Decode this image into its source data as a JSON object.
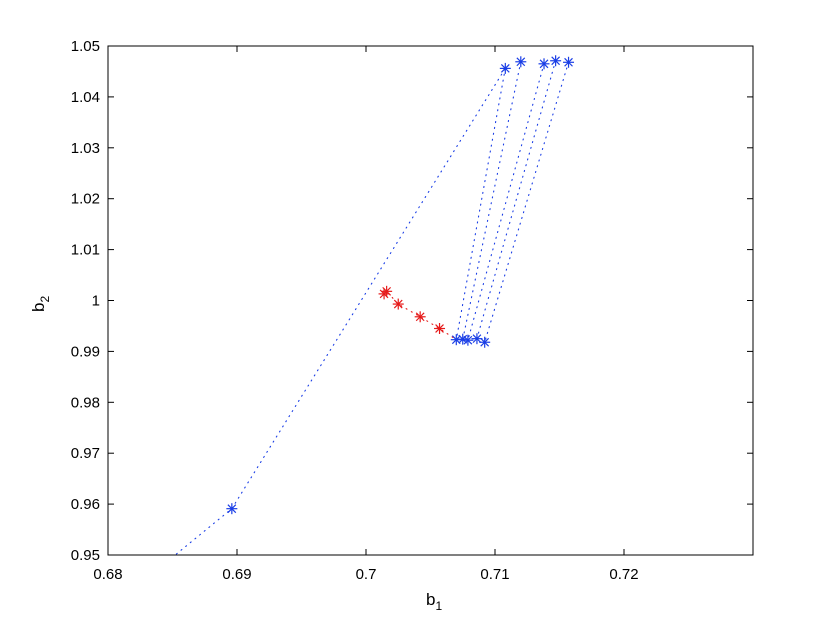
{
  "chart_data": {
    "type": "scatter",
    "xlabel": "b",
    "xlabel_sub": "1",
    "ylabel": "b",
    "ylabel_sub": "2",
    "xlim": [
      0.68,
      0.73
    ],
    "ylim": [
      0.95,
      1.05
    ],
    "xticks": [
      0.68,
      0.69,
      0.7,
      0.71,
      0.72
    ],
    "xtick_labels": [
      "0.68",
      "0.69",
      "0.7",
      "0.71",
      "0.72"
    ],
    "yticks": [
      0.95,
      0.96,
      0.97,
      0.98,
      0.99,
      1.0,
      1.01,
      1.02,
      1.03,
      1.04,
      1.05
    ],
    "ytick_labels": [
      "0.95",
      "0.96",
      "0.97",
      "0.98",
      "0.99",
      "1",
      "1.01",
      "1.02",
      "1.03",
      "1.04",
      "1.05"
    ],
    "grid": false,
    "series": [
      {
        "marker": "asterisk",
        "color": "#1a3ee6",
        "points": [
          [
            0.6896,
            0.9591
          ],
          [
            0.7108,
            1.0456
          ],
          [
            0.712,
            1.0469
          ],
          [
            0.7138,
            1.0465
          ],
          [
            0.7147,
            1.0471
          ],
          [
            0.7157,
            1.0468
          ],
          [
            0.707,
            0.9923
          ],
          [
            0.7075,
            0.9924
          ],
          [
            0.7079,
            0.9922
          ],
          [
            0.7086,
            0.9925
          ],
          [
            0.7092,
            0.9918
          ]
        ]
      },
      {
        "marker": "asterisk",
        "color": "#e61a1a",
        "points": [
          [
            0.7014,
            1.0013
          ],
          [
            0.7016,
            1.0018
          ],
          [
            0.7025,
            0.9993
          ],
          [
            0.7042,
            0.9968
          ],
          [
            0.7057,
            0.9945
          ]
        ]
      }
    ],
    "trajectories": [
      {
        "color": "#1a3ee6",
        "style": "dotted",
        "points": [
          [
            0.6853,
            0.9502
          ],
          [
            0.6896,
            0.9591
          ],
          [
            0.7108,
            1.0456
          ]
        ]
      },
      {
        "color": "#1a3ee6",
        "style": "dotted",
        "points": [
          [
            0.7108,
            1.0456
          ],
          [
            0.707,
            0.9923
          ]
        ]
      },
      {
        "color": "#1a3ee6",
        "style": "dotted",
        "points": [
          [
            0.712,
            1.0469
          ],
          [
            0.7075,
            0.9924
          ]
        ]
      },
      {
        "color": "#1a3ee6",
        "style": "dotted",
        "points": [
          [
            0.7138,
            1.0465
          ],
          [
            0.7079,
            0.9922
          ]
        ]
      },
      {
        "color": "#1a3ee6",
        "style": "dotted",
        "points": [
          [
            0.7147,
            1.0471
          ],
          [
            0.7086,
            0.9925
          ]
        ]
      },
      {
        "color": "#1a3ee6",
        "style": "dotted",
        "points": [
          [
            0.7157,
            1.0468
          ],
          [
            0.7092,
            0.9918
          ]
        ]
      },
      {
        "color": "#e61a1a",
        "style": "dotted",
        "points": [
          [
            0.7014,
            1.0013
          ],
          [
            0.7016,
            1.0018
          ],
          [
            0.7025,
            0.9993
          ],
          [
            0.7042,
            0.9968
          ],
          [
            0.7057,
            0.9945
          ],
          [
            0.707,
            0.9923
          ]
        ]
      }
    ]
  }
}
